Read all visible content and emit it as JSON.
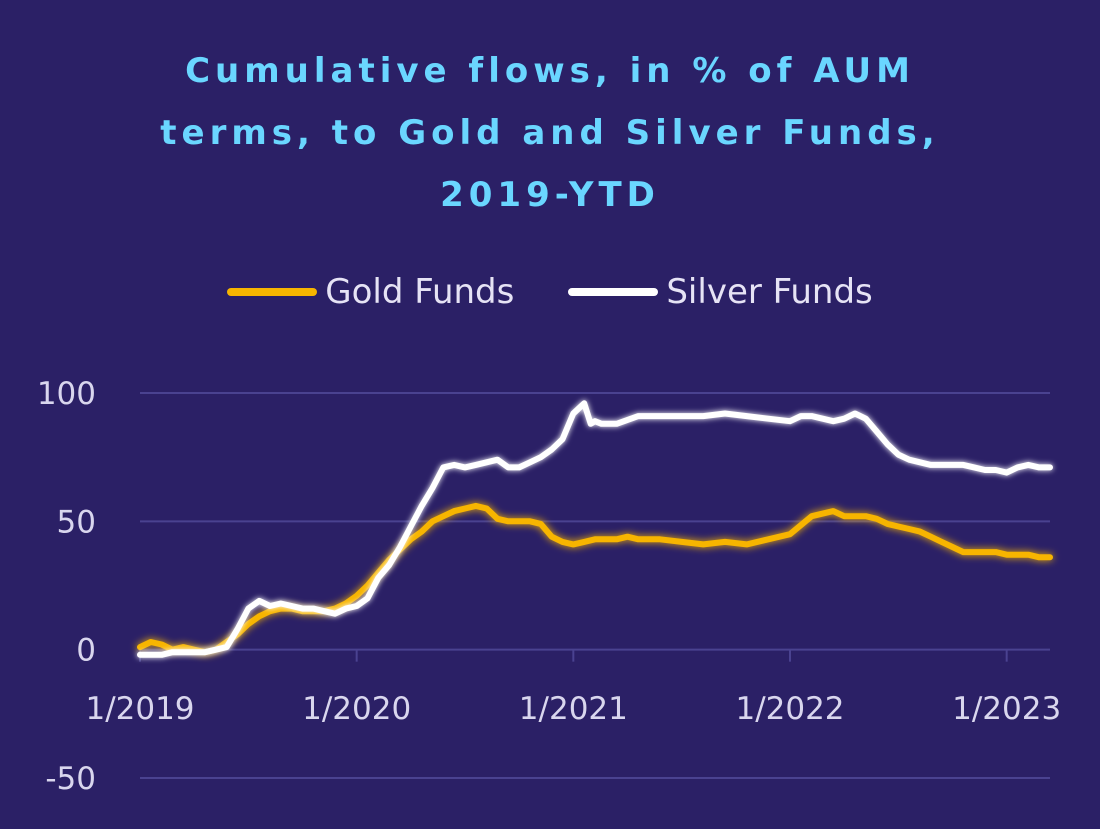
{
  "chart_data": {
    "type": "line",
    "title_lines": [
      "Cumulative flows, in % of AUM",
      "terms, to Gold and Silver Funds,",
      "2019-YTD"
    ],
    "xlabel": "",
    "ylabel": "",
    "xlim": [
      2019.0,
      2023.2
    ],
    "ylim": [
      -50,
      100
    ],
    "y_ticks": [
      100,
      50,
      0,
      -50
    ],
    "y_tick_labels": [
      "100",
      "50",
      "0",
      "-50"
    ],
    "x_ticks": [
      2019,
      2020,
      2021,
      2022,
      2023
    ],
    "x_tick_labels": [
      "1/2019",
      "1/2020",
      "1/2021",
      "1/2022",
      "1/2023"
    ],
    "grid": true,
    "legend_position": "top",
    "colors": {
      "background": "#2b2066",
      "title": "#6ad6ff",
      "gold": "#f7b500",
      "silver": "#ffffff",
      "grid": "#4a4290",
      "text": "#d9d6ee"
    },
    "series": [
      {
        "name": "Gold Funds",
        "color": "#f7b500",
        "x": [
          2019.0,
          2019.05,
          2019.1,
          2019.15,
          2019.2,
          2019.25,
          2019.3,
          2019.35,
          2019.4,
          2019.45,
          2019.5,
          2019.55,
          2019.6,
          2019.65,
          2019.7,
          2019.75,
          2019.8,
          2019.85,
          2019.9,
          2019.95,
          2020.0,
          2020.05,
          2020.1,
          2020.15,
          2020.2,
          2020.25,
          2020.3,
          2020.35,
          2020.4,
          2020.45,
          2020.5,
          2020.55,
          2020.6,
          2020.65,
          2020.7,
          2020.75,
          2020.8,
          2020.85,
          2020.9,
          2020.95,
          2021.0,
          2021.05,
          2021.1,
          2021.15,
          2021.2,
          2021.25,
          2021.3,
          2021.35,
          2021.4,
          2021.5,
          2021.6,
          2021.7,
          2021.8,
          2021.9,
          2022.0,
          2022.1,
          2022.2,
          2022.25,
          2022.3,
          2022.35,
          2022.4,
          2022.45,
          2022.5,
          2022.55,
          2022.6,
          2022.65,
          2022.7,
          2022.75,
          2022.8,
          2022.85,
          2022.9,
          2022.95,
          2023.0,
          2023.05,
          2023.1,
          2023.15,
          2023.2
        ],
        "y": [
          1,
          3,
          2,
          0,
          1,
          0,
          -1,
          0,
          3,
          6,
          10,
          13,
          15,
          16,
          16,
          15,
          15,
          15,
          16,
          18,
          21,
          25,
          30,
          35,
          39,
          43,
          46,
          50,
          52,
          54,
          55,
          56,
          55,
          51,
          50,
          50,
          50,
          49,
          44,
          42,
          41,
          42,
          43,
          43,
          43,
          44,
          43,
          43,
          43,
          42,
          41,
          42,
          41,
          43,
          45,
          52,
          54,
          52,
          52,
          52,
          51,
          49,
          48,
          47,
          46,
          44,
          42,
          40,
          38,
          38,
          38,
          38,
          37,
          37,
          37,
          36,
          36
        ]
      },
      {
        "name": "Silver Funds",
        "color": "#ffffff",
        "x": [
          2019.0,
          2019.05,
          2019.1,
          2019.15,
          2019.2,
          2019.25,
          2019.3,
          2019.35,
          2019.4,
          2019.45,
          2019.5,
          2019.55,
          2019.6,
          2019.65,
          2019.7,
          2019.75,
          2019.8,
          2019.85,
          2019.9,
          2019.95,
          2020.0,
          2020.05,
          2020.1,
          2020.15,
          2020.2,
          2020.25,
          2020.3,
          2020.35,
          2020.4,
          2020.45,
          2020.5,
          2020.55,
          2020.6,
          2020.65,
          2020.7,
          2020.75,
          2020.8,
          2020.85,
          2020.9,
          2020.95,
          2021.0,
          2021.05,
          2021.08,
          2021.1,
          2021.13,
          2021.2,
          2021.3,
          2021.4,
          2021.5,
          2021.6,
          2021.7,
          2021.8,
          2021.9,
          2022.0,
          2022.05,
          2022.1,
          2022.2,
          2022.25,
          2022.3,
          2022.35,
          2022.4,
          2022.45,
          2022.5,
          2022.55,
          2022.6,
          2022.65,
          2022.7,
          2022.75,
          2022.8,
          2022.85,
          2022.9,
          2022.95,
          2023.0,
          2023.05,
          2023.1,
          2023.15,
          2023.2
        ],
        "y": [
          -2,
          -2,
          -2,
          -1,
          -1,
          -1,
          -1,
          0,
          1,
          8,
          16,
          19,
          17,
          18,
          17,
          16,
          16,
          15,
          14,
          16,
          17,
          20,
          28,
          33,
          40,
          48,
          56,
          63,
          71,
          72,
          71,
          72,
          73,
          74,
          71,
          71,
          73,
          75,
          78,
          82,
          92,
          96,
          88,
          89,
          88,
          88,
          91,
          91,
          91,
          91,
          92,
          91,
          90,
          89,
          91,
          91,
          89,
          90,
          92,
          90,
          85,
          80,
          76,
          74,
          73,
          72,
          72,
          72,
          72,
          71,
          70,
          70,
          69,
          71,
          72,
          71,
          71
        ]
      }
    ]
  }
}
